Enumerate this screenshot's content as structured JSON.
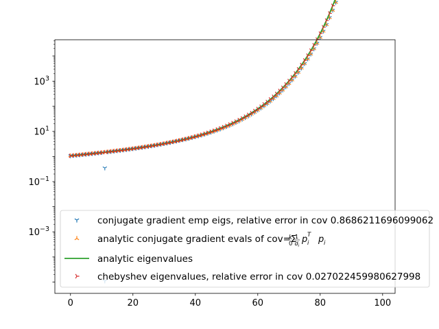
{
  "chart_data": {
    "type": "scatter",
    "title": "",
    "xlabel": "",
    "ylabel": "",
    "xlim": [
      -5,
      104
    ],
    "ylim_log10": [
      -5.45,
      4.65
    ],
    "yscale": "log",
    "grid": false,
    "legend_position": "lower right",
    "x_ticks": [
      {
        "value": 0,
        "label": "0"
      },
      {
        "value": 20,
        "label": "20"
      },
      {
        "value": 40,
        "label": "40"
      },
      {
        "value": 60,
        "label": "60"
      },
      {
        "value": 80,
        "label": "80"
      },
      {
        "value": 100,
        "label": "100"
      }
    ],
    "y_ticks": [
      {
        "log10": 3,
        "label": "10",
        "exp": "3"
      },
      {
        "log10": 1,
        "label": "10",
        "exp": "1"
      },
      {
        "log10": -1,
        "label": "10",
        "exp": "−1"
      },
      {
        "log10": -3,
        "label": "10",
        "exp": "−3"
      }
    ],
    "series": [
      {
        "name": "conjugate gradient emp eigs, relative error in cov 0.8686211696099062",
        "marker": "tri_down",
        "color": "#1f77b4",
        "x_range": [
          0,
          98
        ],
        "log10_curve": "conjugate_gradient",
        "outliers": [
          {
            "x": 11,
            "y": 0.35
          },
          {
            "x": 11,
            "y": 1.1e-05
          }
        ]
      },
      {
        "name": "analytic conjugate gradient evals of cov=",
        "name_math": "Σ",
        "marker": "tri_up",
        "color": "#ff7f0e",
        "x_range": [
          0,
          99
        ],
        "log10_curve": "conjugate_gradient",
        "outliers": []
      },
      {
        "name": "analytic eigenvalues",
        "marker": "line",
        "color": "#2ca02c",
        "x_range": [
          0,
          99
        ],
        "log10_curve": "true_eigenvalues",
        "outliers": []
      },
      {
        "name": "chebyshev eigenvalues, relative error in cov 0.027022459980627998",
        "marker": "tri_right",
        "color": "#d62728",
        "x_range": [
          0,
          99
        ],
        "log10_curve": "true_eigenvalues",
        "outliers": []
      }
    ],
    "legend_math": {
      "k": "k",
      "zero": "0",
      "one": "1",
      "d": "d",
      "i": "i",
      "p": "p",
      "T": "T"
    }
  }
}
